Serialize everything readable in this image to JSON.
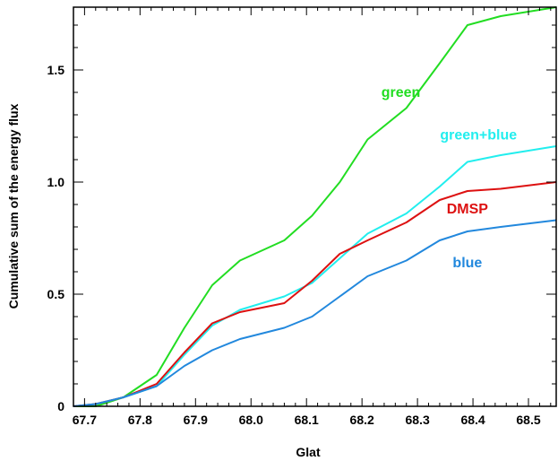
{
  "chart_data": {
    "type": "line",
    "xlabel": "Glat",
    "ylabel": "Cumulative sum of the energy flux",
    "xlim": [
      67.68,
      68.55
    ],
    "ylim": [
      0,
      1.78
    ],
    "xticks": [
      {
        "value": 67.7,
        "label": "67.7"
      },
      {
        "value": 67.8,
        "label": "67.8"
      },
      {
        "value": 67.9,
        "label": "67.9"
      },
      {
        "value": 68.0,
        "label": "68.0"
      },
      {
        "value": 68.1,
        "label": "68.1"
      },
      {
        "value": 68.2,
        "label": "68.2"
      },
      {
        "value": 68.3,
        "label": "68.3"
      },
      {
        "value": 68.4,
        "label": "68.4"
      },
      {
        "value": 68.5,
        "label": "68.5"
      }
    ],
    "yticks": [
      {
        "value": 0,
        "label": "0"
      },
      {
        "value": 0.5,
        "label": "0.5"
      },
      {
        "value": 1.0,
        "label": "1.0"
      },
      {
        "value": 1.5,
        "label": "1.5"
      }
    ],
    "x": [
      67.68,
      67.72,
      67.77,
      67.83,
      67.88,
      67.93,
      67.98,
      68.06,
      68.11,
      68.16,
      68.21,
      68.28,
      68.34,
      68.39,
      68.45,
      68.55
    ],
    "series": [
      {
        "name": "green",
        "color": "#22dd22",
        "label_at": [
          68.27,
          1.38
        ],
        "values": [
          0.0,
          0.0,
          0.04,
          0.14,
          0.35,
          0.54,
          0.65,
          0.74,
          0.85,
          1.0,
          1.19,
          1.33,
          1.53,
          1.7,
          1.74,
          1.78
        ]
      },
      {
        "name": "green+blue",
        "color": "#22eeee",
        "label_at": [
          68.41,
          1.19
        ],
        "values": [
          0.0,
          0.01,
          0.04,
          0.09,
          0.23,
          0.36,
          0.43,
          0.49,
          0.55,
          0.66,
          0.77,
          0.86,
          0.98,
          1.09,
          1.12,
          1.16
        ]
      },
      {
        "name": "DMSP",
        "color": "#dd1111",
        "label_at": [
          68.39,
          0.86
        ],
        "values": [
          0.0,
          0.01,
          0.04,
          0.1,
          0.24,
          0.37,
          0.42,
          0.46,
          0.56,
          0.68,
          0.74,
          0.82,
          0.92,
          0.96,
          0.97,
          1.0
        ]
      },
      {
        "name": "blue",
        "color": "#2288dd",
        "label_at": [
          68.39,
          0.62
        ],
        "values": [
          0.0,
          0.01,
          0.04,
          0.09,
          0.18,
          0.25,
          0.3,
          0.35,
          0.4,
          0.49,
          0.58,
          0.65,
          0.74,
          0.78,
          0.8,
          0.83
        ]
      }
    ],
    "grid": false,
    "legend": "inline labels"
  }
}
